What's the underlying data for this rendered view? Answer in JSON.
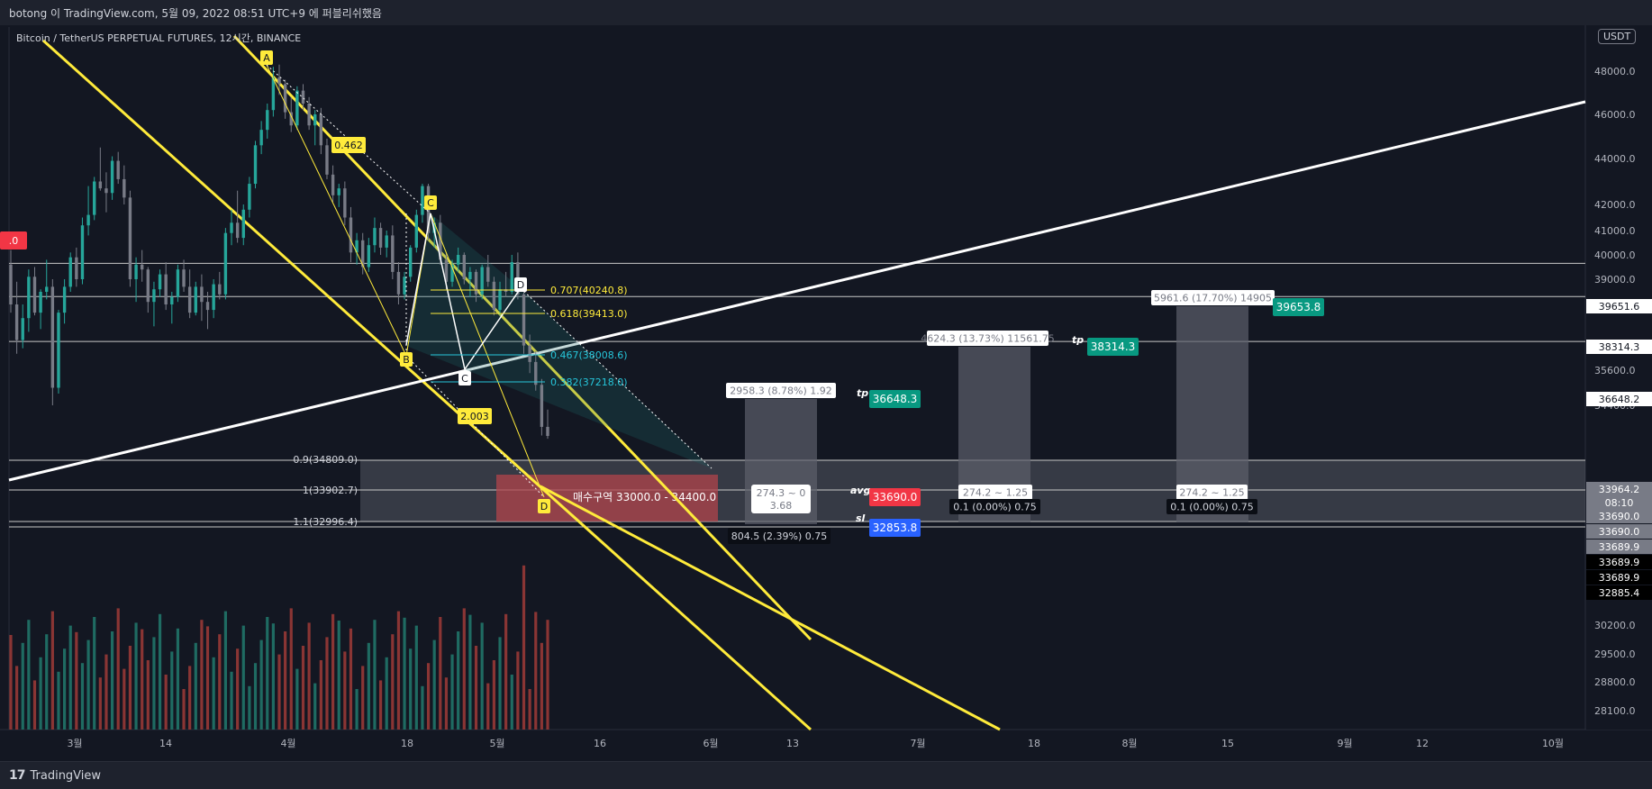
{
  "top_bar": {
    "text": "botong 이 TradingView.com, 5월 09, 2022 08:51 UTC+9 에 퍼블리쉬했음"
  },
  "symbol": "Bitcoin / TetherUS PERPETUAL FUTURES, 12시간, BINANCE",
  "currency": "USDT",
  "brand": {
    "logo": "17",
    "name": "TradingView"
  },
  "price_scale": {
    "ticks": [
      "48000.0",
      "46000.0",
      "44000.0",
      "42000.0",
      "41000.0",
      "40000.0",
      "39000.0",
      "38000.0",
      "35600.0",
      "34400.0",
      "30200.0",
      "29500.0",
      "28800.0",
      "28100.0"
    ],
    "scale_labels": [
      {
        "text": "39651.6",
        "style": "white"
      },
      {
        "text": "38314.3",
        "style": "white"
      },
      {
        "text": "36648.2",
        "style": "white"
      },
      {
        "text": "33964.2",
        "style": "gray"
      },
      {
        "text": "08:10",
        "style": "gray_small"
      },
      {
        "text": "33690.0",
        "style": "gray"
      },
      {
        "text": "33690.0",
        "style": "gray"
      },
      {
        "text": "33689.9",
        "style": "gray"
      },
      {
        "text": "33689.9",
        "style": "black"
      },
      {
        "text": "33689.9",
        "style": "black"
      },
      {
        "text": "32885.4",
        "style": "black"
      }
    ],
    "left_edge_label": ".0"
  },
  "time_axis": {
    "labels": [
      "3월",
      "14",
      "4월",
      "18",
      "5월",
      "16",
      "6월",
      "13",
      "7월",
      "18",
      "8월",
      "15",
      "9월",
      "12",
      "10월"
    ]
  },
  "patterns": {
    "abcd_yellow": {
      "points": [
        "A",
        "B",
        "C",
        "D"
      ],
      "ratios": [
        "0.462",
        "2.003"
      ]
    },
    "abcd_white": {
      "points": [
        "B",
        "C",
        "D"
      ]
    },
    "fib_retracement": [
      {
        "label": "0.707(40240.8)",
        "color": "#ffeb3b"
      },
      {
        "label": "0.618(39413.0)",
        "color": "#ffeb3b"
      },
      {
        "label": "0.467(38008.6)",
        "color": "#26c6da"
      },
      {
        "label": "0.382(37218.0)",
        "color": "#26c6da"
      }
    ],
    "fib_extension": [
      "0.9(34809.0)",
      "1(33902.7)",
      "1.1(32996.4)"
    ],
    "buy_zone_label": "매수구역 33000.0 - 34400.0"
  },
  "positions": {
    "pos1": {
      "top_label": "2958.3 (8.78%) 1.92",
      "mid_label_1": "274.3 ~ 0",
      "mid_label_2": "3.68",
      "bottom_label": "804.5 (2.39%) 0.75",
      "tp_price": "36648.3",
      "avg_price": "33690.0",
      "sl_price": "32853.8",
      "tp_tag": "tp",
      "avg_tag": "avg",
      "sl_tag": "sl"
    },
    "pos2": {
      "top_label": "4624.3 (13.73%) 11561.75",
      "mid_label": "274.2 ~ 1.25",
      "bottom_label": "0.1 (0.00%) 0.75",
      "tp_price": "38314.3",
      "tp_tag": "tp"
    },
    "pos3": {
      "top_label": "5961.6 (17.70%) 14905",
      "mid_label": "274.2 ~ 1.25",
      "bottom_label": "0.1 (0.00%) 0.75",
      "tp_price": "39653.8"
    }
  },
  "colors": {
    "background": "#131722",
    "up": "#26a69a",
    "down": "#ef5350",
    "yellow": "#ffeb3b",
    "cyan": "#26c6da",
    "green_tag": "#089981",
    "red_tag": "#f23645",
    "blue_tag": "#2962ff"
  },
  "chart_data": {
    "type": "candlestick",
    "title": "Bitcoin / TetherUS PERPETUAL FUTURES, 12시간, BINANCE",
    "series": [
      {
        "name": "BTCUSDT 12h",
        "values": [
          [
            39600,
            40200,
            37700,
            38000
          ],
          [
            38000,
            38900,
            36200,
            36700
          ],
          [
            36700,
            38000,
            36400,
            37500
          ],
          [
            37500,
            39400,
            37000,
            39100
          ],
          [
            39100,
            39500,
            37600,
            37700
          ],
          [
            37700,
            38600,
            37100,
            38500
          ],
          [
            38500,
            39800,
            38200,
            38700
          ],
          [
            38700,
            39000,
            34400,
            35000
          ],
          [
            35000,
            37800,
            34800,
            37700
          ],
          [
            37700,
            39000,
            37300,
            38700
          ],
          [
            38700,
            40100,
            38500,
            39900
          ],
          [
            39900,
            40300,
            38700,
            39000
          ],
          [
            39000,
            41500,
            38800,
            41200
          ],
          [
            41200,
            42800,
            40800,
            41600
          ],
          [
            41600,
            43200,
            41400,
            43000
          ],
          [
            43000,
            44500,
            42600,
            42700
          ],
          [
            42700,
            43400,
            41700,
            42500
          ],
          [
            42500,
            44100,
            42200,
            43900
          ],
          [
            43900,
            44300,
            42900,
            43100
          ],
          [
            43100,
            43700,
            42000,
            42300
          ],
          [
            42300,
            42600,
            38700,
            39000
          ],
          [
            39000,
            39900,
            38100,
            39600
          ],
          [
            39600,
            40200,
            38900,
            39400
          ],
          [
            39400,
            39500,
            37700,
            38100
          ],
          [
            38100,
            38900,
            37200,
            38600
          ],
          [
            38600,
            39400,
            38300,
            39200
          ],
          [
            39200,
            39700,
            37800,
            38000
          ],
          [
            38000,
            38500,
            37300,
            38300
          ],
          [
            38300,
            39600,
            38100,
            39400
          ],
          [
            39400,
            39800,
            38500,
            38700
          ],
          [
            38700,
            39400,
            37500,
            37700
          ],
          [
            37700,
            38900,
            37600,
            38700
          ],
          [
            38700,
            39200,
            37400,
            38100
          ],
          [
            38100,
            38500,
            37100,
            37800
          ],
          [
            37800,
            39000,
            37500,
            38800
          ],
          [
            38800,
            39300,
            38200,
            38400
          ],
          [
            38400,
            41100,
            38200,
            40900
          ],
          [
            40900,
            41800,
            40400,
            41300
          ],
          [
            41300,
            42600,
            40500,
            40700
          ],
          [
            40700,
            42000,
            40400,
            41800
          ],
          [
            41800,
            43200,
            41500,
            42900
          ],
          [
            42900,
            44800,
            42700,
            44600
          ],
          [
            44600,
            45700,
            44200,
            45300
          ],
          [
            45300,
            46500,
            44900,
            46200
          ],
          [
            46200,
            48200,
            45900,
            47700
          ],
          [
            47700,
            48300,
            46900,
            47400
          ],
          [
            47400,
            47600,
            45800,
            46100
          ],
          [
            46100,
            46800,
            45200,
            45500
          ],
          [
            45500,
            47300,
            45300,
            47100
          ],
          [
            47100,
            47400,
            46200,
            46500
          ],
          [
            46500,
            46800,
            45300,
            45500
          ],
          [
            45500,
            46200,
            44600,
            46000
          ],
          [
            46000,
            46300,
            44200,
            44600
          ],
          [
            44600,
            44900,
            43100,
            43300
          ],
          [
            43300,
            43700,
            42100,
            42400
          ],
          [
            42400,
            42900,
            41900,
            42700
          ],
          [
            42700,
            43000,
            41200,
            41500
          ],
          [
            41500,
            41900,
            39700,
            40100
          ],
          [
            40100,
            40900,
            39600,
            40600
          ],
          [
            40600,
            40900,
            39200,
            39500
          ],
          [
            39500,
            40700,
            39300,
            40400
          ],
          [
            40400,
            41500,
            40100,
            41100
          ],
          [
            41100,
            41300,
            40000,
            40300
          ],
          [
            40300,
            41000,
            39900,
            40800
          ],
          [
            40800,
            41200,
            39000,
            39300
          ],
          [
            39300,
            39700,
            38000,
            38400
          ],
          [
            38400,
            39300,
            38200,
            39100
          ],
          [
            39100,
            40400,
            38900,
            40300
          ],
          [
            40300,
            41800,
            40100,
            41600
          ],
          [
            41600,
            42900,
            41300,
            42800
          ],
          [
            42800,
            42900,
            40600,
            40900
          ],
          [
            40900,
            41500,
            40300,
            41300
          ],
          [
            41300,
            41600,
            39600,
            39800
          ],
          [
            39800,
            40100,
            38600,
            38900
          ],
          [
            38900,
            39800,
            38700,
            39600
          ],
          [
            39600,
            40300,
            39300,
            40000
          ],
          [
            40000,
            40100,
            38800,
            39000
          ],
          [
            39000,
            39500,
            38300,
            39300
          ],
          [
            39300,
            39400,
            38100,
            38400
          ],
          [
            38400,
            39600,
            38200,
            39500
          ],
          [
            39500,
            40000,
            38700,
            38900
          ],
          [
            38900,
            39100,
            37600,
            37800
          ],
          [
            37800,
            38900,
            37600,
            38600
          ],
          [
            38600,
            39300,
            38300,
            38500
          ],
          [
            38500,
            40000,
            38400,
            39700
          ],
          [
            39700,
            40100,
            38200,
            38400
          ],
          [
            38400,
            38800,
            36200,
            36500
          ],
          [
            36500,
            36900,
            35500,
            35900
          ],
          [
            35900,
            36300,
            34900,
            35100
          ],
          [
            35100,
            35300,
            33700,
            33900
          ],
          [
            33900,
            34300,
            33600,
            33690
          ]
        ]
      }
    ],
    "ylim": [
      27900,
      49000
    ],
    "xlabels": [
      "3월",
      "14",
      "4월",
      "18",
      "5월",
      "16",
      "6월",
      "13",
      "7월",
      "18",
      "8월",
      "15",
      "9월",
      "12",
      "10월"
    ],
    "annotations": [
      "0.462",
      "2.003",
      "0.707(40240.8)",
      "0.618(39413.0)",
      "0.467(38008.6)",
      "0.382(37218.0)",
      "0.9(34809.0)",
      "1(33902.7)",
      "1.1(32996.4)",
      "매수구역 33000.0 - 34400.0"
    ]
  }
}
